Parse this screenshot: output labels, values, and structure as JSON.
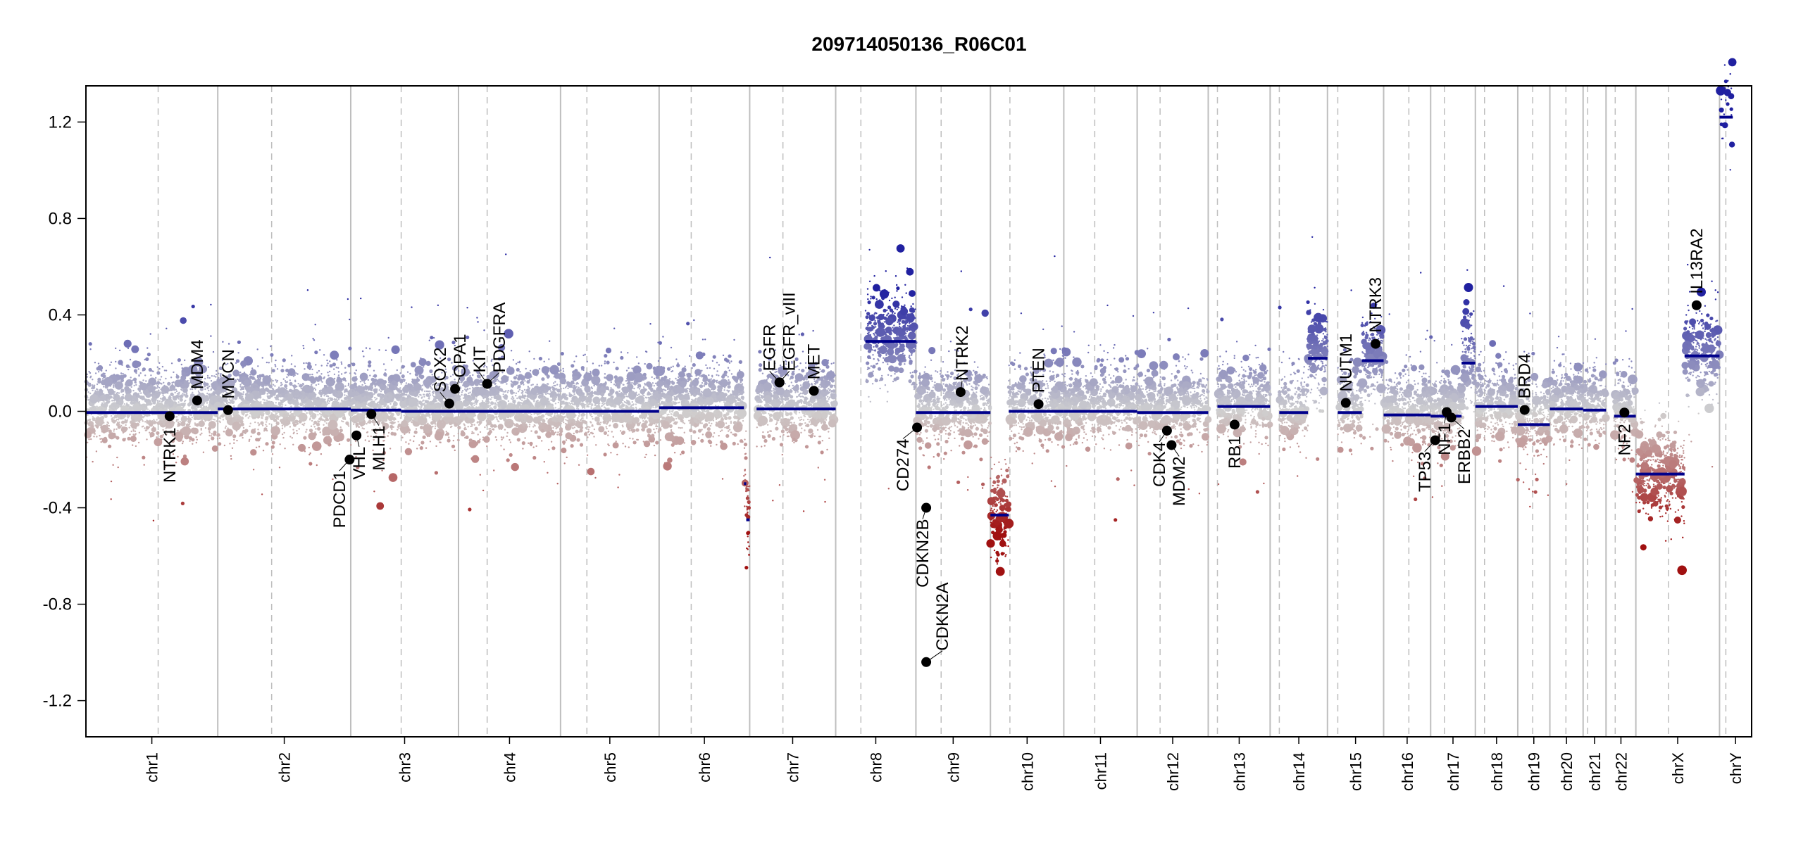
{
  "chart_data": {
    "type": "scatter",
    "title": "209714050136_R06C01",
    "xlabel": "",
    "ylabel": "",
    "ylim": [
      -1.35,
      1.35
    ],
    "yticks": [
      -1.2,
      -0.8,
      -0.4,
      0.0,
      0.4,
      0.8,
      1.2
    ],
    "ytick_labels": [
      "-1.2",
      "-0.8",
      "-0.4",
      "0.0",
      "0.4",
      "0.8",
      "1.2"
    ],
    "grid": "vertical chromosome boundaries (solid) and centromeres (dashed)",
    "colors": {
      "gain": "#00008B",
      "loss": "#8B0000",
      "neutral": "#CCCCCC",
      "segment": "#00008B",
      "gene": "#000000",
      "boundary": "#BEBEBE"
    },
    "chromosomes": [
      {
        "name": "chr1",
        "length": 230,
        "centromere": 126
      },
      {
        "name": "chr2",
        "length": 232,
        "centromere": 94
      },
      {
        "name": "chr3",
        "length": 188,
        "centromere": 88
      },
      {
        "name": "chr4",
        "length": 178,
        "centromere": 50
      },
      {
        "name": "chr5",
        "length": 172,
        "centromere": 46
      },
      {
        "name": "chr6",
        "length": 158,
        "centromere": 56
      },
      {
        "name": "chr7",
        "length": 150,
        "centromere": 58
      },
      {
        "name": "chr8",
        "length": 140,
        "centromere": 44
      },
      {
        "name": "chr9",
        "length": 130,
        "centromere": 44
      },
      {
        "name": "chr10",
        "length": 128,
        "centromere": 34
      },
      {
        "name": "chr11",
        "length": 128,
        "centromere": 54
      },
      {
        "name": "chr12",
        "length": 124,
        "centromere": 40
      },
      {
        "name": "chr13",
        "length": 108,
        "centromere": 16
      },
      {
        "name": "chr14",
        "length": 100,
        "centromere": 16
      },
      {
        "name": "chr15",
        "length": 98,
        "centromere": 18
      },
      {
        "name": "chr16",
        "length": 82,
        "centromere": 44
      },
      {
        "name": "chr17",
        "length": 78,
        "centromere": 24
      },
      {
        "name": "chr18",
        "length": 74,
        "centromere": 16
      },
      {
        "name": "chr19",
        "length": 56,
        "centromere": 26
      },
      {
        "name": "chr20",
        "length": 58,
        "centromere": 28
      },
      {
        "name": "chr21",
        "length": 40,
        "centromere": 8
      },
      {
        "name": "chr22",
        "length": 52,
        "centromere": 16
      },
      {
        "name": "chrX",
        "length": 146,
        "centromere": 57
      },
      {
        "name": "chrY",
        "length": 56,
        "centromere": 11
      }
    ],
    "segments": [
      {
        "chr": "chr1",
        "start": 0,
        "end": 230,
        "value": -0.005
      },
      {
        "chr": "chr2",
        "start": 0,
        "end": 232,
        "value": 0.01
      },
      {
        "chr": "chr3",
        "start": 0,
        "end": 88,
        "value": 0.005
      },
      {
        "chr": "chr3",
        "start": 88,
        "end": 188,
        "value": 0.0
      },
      {
        "chr": "chr4",
        "start": 0,
        "end": 178,
        "value": 0.0
      },
      {
        "chr": "chr5",
        "start": 0,
        "end": 172,
        "value": 0.0
      },
      {
        "chr": "chr6",
        "start": 0,
        "end": 148,
        "value": 0.015
      },
      {
        "chr": "chr6",
        "start": 148,
        "end": 152,
        "value": -0.3
      },
      {
        "chr": "chr6",
        "start": 152,
        "end": 158,
        "value": -0.45
      },
      {
        "chr": "chr7",
        "start": 12,
        "end": 150,
        "value": 0.01
      },
      {
        "chr": "chr8",
        "start": 52,
        "end": 140,
        "value": 0.29
      },
      {
        "chr": "chr9",
        "start": 0,
        "end": 130,
        "value": -0.005
      },
      {
        "chr": "chr10",
        "start": 0,
        "end": 32,
        "value": -0.43
      },
      {
        "chr": "chr10",
        "start": 32,
        "end": 128,
        "value": 0.0
      },
      {
        "chr": "chr11",
        "start": 0,
        "end": 128,
        "value": 0.0
      },
      {
        "chr": "chr12",
        "start": 0,
        "end": 124,
        "value": -0.005
      },
      {
        "chr": "chr13",
        "start": 16,
        "end": 108,
        "value": 0.02
      },
      {
        "chr": "chr14",
        "start": 16,
        "end": 66,
        "value": -0.005
      },
      {
        "chr": "chr14",
        "start": 66,
        "end": 100,
        "value": 0.22
      },
      {
        "chr": "chr15",
        "start": 18,
        "end": 60,
        "value": -0.005
      },
      {
        "chr": "chr15",
        "start": 60,
        "end": 98,
        "value": 0.21
      },
      {
        "chr": "chr16",
        "start": 0,
        "end": 82,
        "value": -0.015
      },
      {
        "chr": "chr17",
        "start": 0,
        "end": 54,
        "value": -0.02
      },
      {
        "chr": "chr17",
        "start": 54,
        "end": 78,
        "value": 0.2
      },
      {
        "chr": "chr18",
        "start": 0,
        "end": 74,
        "value": 0.02
      },
      {
        "chr": "chr19",
        "start": 0,
        "end": 56,
        "value": -0.055
      },
      {
        "chr": "chr20",
        "start": 0,
        "end": 58,
        "value": 0.01
      },
      {
        "chr": "chr21",
        "start": 0,
        "end": 40,
        "value": 0.005
      },
      {
        "chr": "chr22",
        "start": 14,
        "end": 52,
        "value": -0.02
      },
      {
        "chr": "chrX",
        "start": 0,
        "end": 85,
        "value": -0.26
      },
      {
        "chr": "chrX",
        "start": 85,
        "end": 146,
        "value": 0.23
      },
      {
        "chr": "chrY",
        "start": 0,
        "end": 23,
        "value": 1.22
      }
    ],
    "genes": [
      {
        "name": "NTRK1",
        "chr": "chr1",
        "pos": 146,
        "value": -0.02
      },
      {
        "name": "MDM4",
        "chr": "chr1",
        "pos": 194,
        "value": 0.045
      },
      {
        "name": "MYCN",
        "chr": "chr2",
        "pos": 18,
        "value": 0.005
      },
      {
        "name": "PDCD1",
        "chr": "chr2",
        "pos": 230,
        "value": -0.2
      },
      {
        "name": "VHL",
        "chr": "chr3",
        "pos": 10,
        "value": -0.1
      },
      {
        "name": "MLH1",
        "chr": "chr3",
        "pos": 36,
        "value": -0.012
      },
      {
        "name": "SOX2",
        "chr": "chr3",
        "pos": 172,
        "value": 0.032
      },
      {
        "name": "OPA1",
        "chr": "chr3",
        "pos": 182,
        "value": 0.093
      },
      {
        "name": "KIT",
        "chr": "chr4",
        "pos": 50,
        "value": 0.114
      },
      {
        "name": "PDGFRA",
        "chr": "chr4",
        "pos": 50,
        "value": 0.114
      },
      {
        "name": "EGFR",
        "chr": "chr7",
        "pos": 52,
        "value": 0.12
      },
      {
        "name": "EGFR_vIII",
        "chr": "chr7",
        "pos": 52,
        "value": 0.12
      },
      {
        "name": "MET",
        "chr": "chr7",
        "pos": 112,
        "value": 0.085
      },
      {
        "name": "CD274",
        "chr": "chr9",
        "pos": 2,
        "value": -0.067
      },
      {
        "name": "CDKN2B",
        "chr": "chr9",
        "pos": 18,
        "value": -0.4
      },
      {
        "name": "CDKN2A",
        "chr": "chr9",
        "pos": 18,
        "value": -1.04
      },
      {
        "name": "NTRK2",
        "chr": "chr9",
        "pos": 78,
        "value": 0.08
      },
      {
        "name": "PTEN",
        "chr": "chr10",
        "pos": 84,
        "value": 0.03
      },
      {
        "name": "CDK4",
        "chr": "chr12",
        "pos": 52,
        "value": -0.08
      },
      {
        "name": "MDM2",
        "chr": "chr12",
        "pos": 60,
        "value": -0.14
      },
      {
        "name": "RB1",
        "chr": "chr13",
        "pos": 46,
        "value": -0.055
      },
      {
        "name": "NUTM1",
        "chr": "chr15",
        "pos": 32,
        "value": 0.035
      },
      {
        "name": "NTRK3",
        "chr": "chr15",
        "pos": 84,
        "value": 0.28
      },
      {
        "name": "TP53",
        "chr": "chr17",
        "pos": 8,
        "value": -0.12
      },
      {
        "name": "NF1",
        "chr": "chr17",
        "pos": 28,
        "value": -0.003
      },
      {
        "name": "ERBB2",
        "chr": "chr17",
        "pos": 36,
        "value": -0.026
      },
      {
        "name": "BRD4",
        "chr": "chr19",
        "pos": 12,
        "value": 0.006
      },
      {
        "name": "NF2",
        "chr": "chr22",
        "pos": 32,
        "value": -0.005
      },
      {
        "name": "IL13RA2",
        "chr": "chrX",
        "pos": 106,
        "value": 0.44
      }
    ]
  }
}
